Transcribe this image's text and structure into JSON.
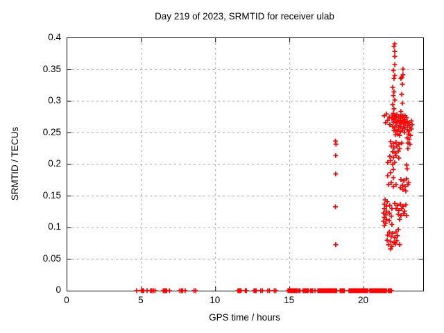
{
  "chart_data": {
    "type": "scatter",
    "title": "Day 219 of 2023, SRMTID for receiver ulab",
    "xlabel": "GPS time / hours",
    "ylabel": "SRMTID / TECUs",
    "xlim": [
      0,
      24
    ],
    "ylim": [
      0,
      0.4
    ],
    "xticks": [
      0,
      5,
      10,
      15,
      20
    ],
    "xtick_labels": [
      "0",
      "5",
      "10",
      "15",
      "20"
    ],
    "yticks": [
      0,
      0.05,
      0.1,
      0.15,
      0.2,
      0.25,
      0.3,
      0.35,
      0.4
    ],
    "ytick_labels": [
      "0",
      "0.05",
      "0.1",
      "0.15",
      "0.2",
      "0.25",
      "0.3",
      "0.35",
      "0.4"
    ],
    "grid": true,
    "legend": "none",
    "marker": {
      "shape": "plus",
      "color": "#ff0000",
      "size": 7
    },
    "grid_color": "#a8a8a8",
    "axis_color": "#000000",
    "series": [
      {
        "name": "SRMTID",
        "points": [
          [
            4.68,
            0
          ],
          [
            4.99,
            0
          ],
          [
            5.08,
            0
          ],
          [
            5.15,
            0
          ],
          [
            5.38,
            0
          ],
          [
            5.62,
            0
          ],
          [
            5.7,
            0
          ],
          [
            5.8,
            0
          ],
          [
            5.92,
            0
          ],
          [
            6.47,
            0
          ],
          [
            6.55,
            0
          ],
          [
            6.6,
            0
          ],
          [
            6.65,
            0
          ],
          [
            6.7,
            0
          ],
          [
            6.89,
            0
          ],
          [
            7.59,
            0
          ],
          [
            7.7,
            0
          ],
          [
            7.78,
            0
          ],
          [
            7.95,
            0
          ],
          [
            8.55,
            0
          ],
          [
            8.66,
            0
          ],
          [
            11.51,
            0
          ],
          [
            11.58,
            0
          ],
          [
            11.65,
            0
          ],
          [
            11.72,
            0
          ],
          [
            12.01,
            0
          ],
          [
            12.08,
            0
          ],
          [
            12.59,
            0
          ],
          [
            12.66,
            0
          ],
          [
            12.74,
            0
          ],
          [
            13.05,
            0
          ],
          [
            13.16,
            0
          ],
          [
            13.52,
            0
          ],
          [
            13.63,
            0
          ],
          [
            13.96,
            0
          ],
          [
            14.07,
            0
          ],
          [
            14.88,
            0
          ],
          [
            14.95,
            0
          ],
          [
            15.02,
            0
          ],
          [
            15.09,
            0
          ],
          [
            15.16,
            0
          ],
          [
            15.23,
            0
          ],
          [
            15.3,
            0
          ],
          [
            15.37,
            0
          ],
          [
            15.44,
            0
          ],
          [
            15.51,
            0
          ],
          [
            15.62,
            0
          ],
          [
            15.69,
            0
          ],
          [
            15.9,
            0
          ],
          [
            15.97,
            0
          ],
          [
            16.04,
            0
          ],
          [
            16.11,
            0
          ],
          [
            16.18,
            0
          ],
          [
            16.25,
            0
          ],
          [
            16.4,
            0
          ],
          [
            16.47,
            0
          ],
          [
            16.55,
            0
          ],
          [
            16.7,
            0
          ],
          [
            16.9,
            0
          ],
          [
            16.97,
            0
          ],
          [
            17.04,
            0
          ],
          [
            17.11,
            0
          ],
          [
            17.18,
            0
          ],
          [
            17.25,
            0
          ],
          [
            17.32,
            0
          ],
          [
            17.39,
            0
          ],
          [
            17.46,
            0
          ],
          [
            17.53,
            0
          ],
          [
            17.6,
            0
          ],
          [
            17.67,
            0
          ],
          [
            17.74,
            0
          ],
          [
            17.81,
            0
          ],
          [
            17.88,
            0
          ],
          [
            17.95,
            0
          ],
          [
            18.02,
            0
          ],
          [
            18.09,
            0
          ],
          [
            18.16,
            0
          ],
          [
            18.4,
            0
          ],
          [
            18.47,
            0
          ],
          [
            18.54,
            0
          ],
          [
            18.61,
            0
          ],
          [
            18.68,
            0
          ],
          [
            19.0,
            0
          ],
          [
            19.07,
            0
          ],
          [
            19.14,
            0
          ],
          [
            19.21,
            0
          ],
          [
            19.28,
            0
          ],
          [
            19.35,
            0
          ],
          [
            19.42,
            0
          ],
          [
            19.49,
            0
          ],
          [
            19.56,
            0
          ],
          [
            19.63,
            0
          ],
          [
            19.7,
            0
          ],
          [
            19.77,
            0
          ],
          [
            19.84,
            0
          ],
          [
            19.91,
            0
          ],
          [
            19.98,
            0
          ],
          [
            20.05,
            0
          ],
          [
            20.12,
            0
          ],
          [
            20.19,
            0
          ],
          [
            20.26,
            0
          ],
          [
            20.4,
            0
          ],
          [
            20.47,
            0
          ],
          [
            20.54,
            0
          ],
          [
            20.61,
            0
          ],
          [
            20.68,
            0
          ],
          [
            20.75,
            0
          ],
          [
            20.82,
            0
          ],
          [
            20.89,
            0
          ],
          [
            20.96,
            0
          ],
          [
            21.03,
            0
          ],
          [
            21.1,
            0
          ],
          [
            21.17,
            0
          ],
          [
            21.24,
            0
          ],
          [
            21.31,
            0
          ],
          [
            21.38,
            0
          ],
          [
            21.45,
            0
          ],
          [
            21.52,
            0
          ],
          [
            21.65,
            0
          ],
          [
            21.72,
            0
          ],
          [
            21.8,
            0
          ],
          [
            21.86,
            0
          ],
          [
            18.08,
            0.237
          ],
          [
            18.12,
            0.232
          ],
          [
            18.1,
            0.214
          ],
          [
            18.1,
            0.185
          ],
          [
            18.08,
            0.133
          ],
          [
            18.1,
            0.073
          ],
          [
            22.08,
            0.391
          ],
          [
            22.03,
            0.387
          ],
          [
            22.08,
            0.379
          ],
          [
            22.08,
            0.371
          ],
          [
            22.08,
            0.358
          ],
          [
            21.99,
            0.349
          ],
          [
            22.08,
            0.341
          ],
          [
            22.03,
            0.336
          ],
          [
            22.64,
            0.351
          ],
          [
            22.64,
            0.342
          ],
          [
            22.55,
            0.338
          ],
          [
            22.5,
            0.336
          ],
          [
            22.6,
            0.327
          ],
          [
            22.55,
            0.311
          ],
          [
            22.6,
            0.297
          ],
          [
            22.5,
            0.284
          ],
          [
            22.64,
            0.277
          ],
          [
            21.94,
            0.322
          ],
          [
            22.03,
            0.315
          ],
          [
            21.99,
            0.309
          ],
          [
            22.08,
            0.302
          ],
          [
            21.94,
            0.295
          ],
          [
            22.03,
            0.288
          ],
          [
            21.99,
            0.281
          ],
          [
            22.08,
            0.275
          ],
          [
            21.52,
            0.28
          ],
          [
            21.38,
            0.277
          ],
          [
            21.71,
            0.275
          ],
          [
            21.61,
            0.27
          ],
          [
            21.47,
            0.266
          ],
          [
            21.75,
            0.263
          ],
          [
            21.94,
            0.278
          ],
          [
            22.08,
            0.277
          ],
          [
            22.22,
            0.279
          ],
          [
            22.36,
            0.276
          ],
          [
            22.5,
            0.278
          ],
          [
            22.64,
            0.275
          ],
          [
            22.78,
            0.277
          ],
          [
            21.89,
            0.273
          ],
          [
            22.03,
            0.271
          ],
          [
            22.17,
            0.274
          ],
          [
            22.32,
            0.27
          ],
          [
            22.46,
            0.273
          ],
          [
            22.6,
            0.269
          ],
          [
            22.74,
            0.271
          ],
          [
            22.88,
            0.274
          ],
          [
            21.99,
            0.267
          ],
          [
            22.13,
            0.266
          ],
          [
            22.27,
            0.268
          ],
          [
            22.41,
            0.265
          ],
          [
            22.55,
            0.267
          ],
          [
            22.69,
            0.264
          ],
          [
            22.83,
            0.266
          ],
          [
            21.94,
            0.26
          ],
          [
            22.08,
            0.259
          ],
          [
            22.22,
            0.262
          ],
          [
            22.36,
            0.258
          ],
          [
            22.5,
            0.26
          ],
          [
            22.64,
            0.257
          ],
          [
            22.78,
            0.259
          ],
          [
            22.03,
            0.254
          ],
          [
            22.17,
            0.253
          ],
          [
            22.32,
            0.255
          ],
          [
            22.46,
            0.252
          ],
          [
            22.6,
            0.254
          ],
          [
            22.74,
            0.251
          ],
          [
            22.13,
            0.247
          ],
          [
            22.27,
            0.248
          ],
          [
            22.41,
            0.246
          ],
          [
            22.92,
            0.268
          ],
          [
            23.06,
            0.266
          ],
          [
            23.2,
            0.269
          ],
          [
            22.97,
            0.262
          ],
          [
            23.11,
            0.259
          ],
          [
            23.25,
            0.263
          ],
          [
            22.92,
            0.255
          ],
          [
            23.06,
            0.253
          ],
          [
            23.2,
            0.256
          ],
          [
            23.01,
            0.248
          ],
          [
            23.15,
            0.246
          ],
          [
            22.92,
            0.242
          ],
          [
            23.06,
            0.24
          ],
          [
            22.97,
            0.234
          ],
          [
            23.11,
            0.232
          ],
          [
            22.97,
            0.225
          ],
          [
            22.88,
            0.199
          ],
          [
            22.92,
            0.193
          ],
          [
            21.8,
            0.236
          ],
          [
            21.99,
            0.233
          ],
          [
            22.17,
            0.235
          ],
          [
            22.36,
            0.232
          ],
          [
            22.55,
            0.234
          ],
          [
            21.85,
            0.229
          ],
          [
            22.03,
            0.226
          ],
          [
            22.22,
            0.229
          ],
          [
            22.41,
            0.225
          ],
          [
            21.94,
            0.22
          ],
          [
            22.13,
            0.218
          ],
          [
            22.32,
            0.221
          ],
          [
            21.75,
            0.213
          ],
          [
            21.99,
            0.211
          ],
          [
            22.17,
            0.214
          ],
          [
            22.36,
            0.21
          ],
          [
            21.8,
            0.206
          ],
          [
            21.61,
            0.203
          ],
          [
            21.94,
            0.2
          ],
          [
            22.08,
            0.203
          ],
          [
            21.99,
            0.192
          ],
          [
            21.8,
            0.187
          ],
          [
            21.61,
            0.182
          ],
          [
            21.99,
            0.179
          ],
          [
            21.85,
            0.171
          ],
          [
            21.66,
            0.168
          ],
          [
            21.99,
            0.165
          ],
          [
            22.17,
            0.168
          ],
          [
            22.5,
            0.176
          ],
          [
            22.69,
            0.174
          ],
          [
            22.88,
            0.177
          ],
          [
            23.01,
            0.171
          ],
          [
            22.6,
            0.167
          ],
          [
            22.78,
            0.165
          ],
          [
            22.97,
            0.168
          ],
          [
            22.64,
            0.16
          ],
          [
            22.83,
            0.158
          ],
          [
            22.46,
            0.163
          ],
          [
            21.43,
            0.144
          ],
          [
            21.57,
            0.141
          ],
          [
            21.38,
            0.137
          ],
          [
            21.52,
            0.134
          ],
          [
            21.38,
            0.13
          ],
          [
            21.52,
            0.126
          ],
          [
            21.33,
            0.123
          ],
          [
            21.47,
            0.12
          ],
          [
            21.38,
            0.116
          ],
          [
            21.52,
            0.113
          ],
          [
            21.33,
            0.11
          ],
          [
            21.47,
            0.107
          ],
          [
            21.38,
            0.103
          ],
          [
            21.75,
            0.135
          ],
          [
            21.89,
            0.13
          ],
          [
            21.71,
            0.123
          ],
          [
            21.85,
            0.118
          ],
          [
            21.71,
            0.111
          ],
          [
            21.89,
            0.105
          ],
          [
            22.08,
            0.138
          ],
          [
            22.27,
            0.135
          ],
          [
            22.46,
            0.137
          ],
          [
            22.64,
            0.134
          ],
          [
            22.83,
            0.136
          ],
          [
            22.17,
            0.13
          ],
          [
            22.36,
            0.127
          ],
          [
            22.55,
            0.13
          ],
          [
            22.74,
            0.126
          ],
          [
            22.32,
            0.121
          ],
          [
            22.5,
            0.119
          ],
          [
            22.69,
            0.122
          ],
          [
            22.88,
            0.119
          ],
          [
            22.41,
            0.113
          ],
          [
            21.71,
            0.093
          ],
          [
            21.94,
            0.091
          ],
          [
            22.17,
            0.093
          ],
          [
            21.61,
            0.088
          ],
          [
            21.85,
            0.086
          ],
          [
            22.08,
            0.084
          ],
          [
            22.27,
            0.087
          ],
          [
            21.57,
            0.08
          ],
          [
            21.8,
            0.078
          ],
          [
            22.03,
            0.076
          ],
          [
            22.22,
            0.079
          ],
          [
            21.66,
            0.073
          ],
          [
            21.89,
            0.07
          ],
          [
            22.13,
            0.074
          ],
          [
            21.8,
            0.066
          ],
          [
            22.32,
            0.097
          ],
          [
            22.41,
            0.073
          ]
        ]
      }
    ]
  }
}
